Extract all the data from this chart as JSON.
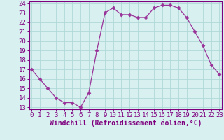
{
  "x": [
    0,
    1,
    2,
    3,
    4,
    5,
    6,
    7,
    8,
    9,
    10,
    11,
    12,
    13,
    14,
    15,
    16,
    17,
    18,
    19,
    20,
    21,
    22,
    23
  ],
  "y": [
    17,
    16,
    15,
    14,
    13.5,
    13.5,
    13,
    14.5,
    19,
    23,
    23.5,
    22.8,
    22.8,
    22.5,
    22.5,
    23.5,
    23.8,
    23.8,
    23.5,
    22.5,
    21,
    19.5,
    17.5,
    16.5
  ],
  "line_color": "#993399",
  "marker": "D",
  "marker_size": 2.5,
  "background_color": "#d8f0f0",
  "grid_color": "#b0d8d8",
  "xlabel": "Windchill (Refroidissement éolien,°C)",
  "ylim_min": 13,
  "ylim_max": 24,
  "xlim_min": 0,
  "xlim_max": 23,
  "yticks": [
    13,
    14,
    15,
    16,
    17,
    18,
    19,
    20,
    21,
    22,
    23,
    24
  ],
  "xticks": [
    0,
    1,
    2,
    3,
    4,
    5,
    6,
    7,
    8,
    9,
    10,
    11,
    12,
    13,
    14,
    15,
    16,
    17,
    18,
    19,
    20,
    21,
    22,
    23
  ],
  "font_color": "#7f007f",
  "tick_fontsize": 6.5,
  "label_fontsize": 7.0
}
